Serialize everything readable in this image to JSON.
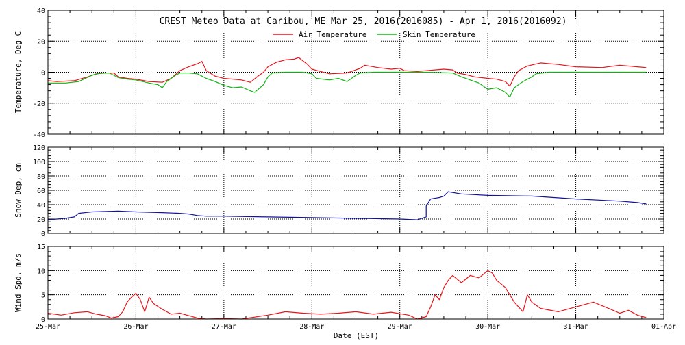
{
  "title": "CREST Meteo Data at Caribou, ME   Mar 25, 2016(2016085) - Apr  1, 2016(2016092)",
  "xlabel": "Date (EST)",
  "x_tick_labels": [
    "25-Mar",
    "26-Mar",
    "27-Mar",
    "28-Mar",
    "29-Mar",
    "30-Mar",
    "31-Mar",
    "01-Apr"
  ],
  "colors": {
    "air": "#e8141a",
    "skin": "#13b213",
    "snow": "#13139a",
    "wind": "#e8141a",
    "grid": "#000000"
  },
  "chart_data": [
    {
      "type": "line",
      "ylabel": "Temperature, Deg C",
      "ylim": [
        -40,
        40
      ],
      "y_tick_labels": [
        "-40",
        "-20",
        "0",
        "20",
        "40"
      ],
      "xlim": [
        0,
        7
      ],
      "grid": true,
      "legend": "top",
      "series": [
        {
          "name": "Air Temperature",
          "color": "#e8141a",
          "points": [
            [
              0,
              -5.5
            ],
            [
              0.1,
              -6
            ],
            [
              0.3,
              -5.5
            ],
            [
              0.45,
              -3
            ],
            [
              0.55,
              -1
            ],
            [
              0.65,
              -0.5
            ],
            [
              0.75,
              -0.5
            ],
            [
              0.8,
              -3
            ],
            [
              0.9,
              -4
            ],
            [
              1.0,
              -4.5
            ],
            [
              1.15,
              -6
            ],
            [
              1.3,
              -6.5
            ],
            [
              1.4,
              -4
            ],
            [
              1.5,
              1
            ],
            [
              1.6,
              3.5
            ],
            [
              1.7,
              5.5
            ],
            [
              1.75,
              7
            ],
            [
              1.8,
              1
            ],
            [
              1.9,
              -2.5
            ],
            [
              2.0,
              -4
            ],
            [
              2.2,
              -5
            ],
            [
              2.3,
              -6.5
            ],
            [
              2.4,
              -2
            ],
            [
              2.45,
              0
            ],
            [
              2.5,
              3.5
            ],
            [
              2.6,
              6.5
            ],
            [
              2.7,
              8
            ],
            [
              2.8,
              8.5
            ],
            [
              2.85,
              9.5
            ],
            [
              2.95,
              5
            ],
            [
              3.0,
              2
            ],
            [
              3.1,
              0.5
            ],
            [
              3.2,
              -1
            ],
            [
              3.4,
              -0.5
            ],
            [
              3.55,
              2.5
            ],
            [
              3.6,
              4.5
            ],
            [
              3.75,
              3
            ],
            [
              3.9,
              2
            ],
            [
              4.0,
              2.5
            ],
            [
              4.05,
              1
            ],
            [
              4.2,
              0.5
            ],
            [
              4.3,
              1
            ],
            [
              4.5,
              2
            ],
            [
              4.6,
              1.5
            ],
            [
              4.65,
              -0.5
            ],
            [
              4.75,
              -1.5
            ],
            [
              4.85,
              -3
            ],
            [
              5.0,
              -4
            ],
            [
              5.1,
              -4.5
            ],
            [
              5.2,
              -6
            ],
            [
              5.25,
              -9
            ],
            [
              5.3,
              -3
            ],
            [
              5.35,
              1
            ],
            [
              5.45,
              4
            ],
            [
              5.6,
              6
            ],
            [
              5.8,
              5
            ],
            [
              6.0,
              3.5
            ],
            [
              6.3,
              3
            ],
            [
              6.5,
              4.5
            ],
            [
              6.7,
              3.5
            ],
            [
              6.8,
              3
            ]
          ]
        },
        {
          "name": "Skin Temperature",
          "color": "#13b213",
          "points": [
            [
              0,
              -7
            ],
            [
              0.2,
              -7
            ],
            [
              0.35,
              -6
            ],
            [
              0.5,
              -2
            ],
            [
              0.6,
              -0.5
            ],
            [
              0.7,
              -0.5
            ],
            [
              0.8,
              -3.5
            ],
            [
              0.9,
              -4.5
            ],
            [
              1.0,
              -5
            ],
            [
              1.15,
              -7
            ],
            [
              1.25,
              -8
            ],
            [
              1.3,
              -10
            ],
            [
              1.35,
              -6
            ],
            [
              1.45,
              -2
            ],
            [
              1.5,
              -0.5
            ],
            [
              1.6,
              -0.5
            ],
            [
              1.7,
              -1
            ],
            [
              1.8,
              -4
            ],
            [
              1.9,
              -6
            ],
            [
              2.0,
              -8.5
            ],
            [
              2.1,
              -10
            ],
            [
              2.2,
              -9.5
            ],
            [
              2.3,
              -12
            ],
            [
              2.35,
              -13
            ],
            [
              2.45,
              -8
            ],
            [
              2.5,
              -3
            ],
            [
              2.55,
              -0.5
            ],
            [
              2.7,
              0
            ],
            [
              2.9,
              0
            ],
            [
              3.0,
              -1
            ],
            [
              3.05,
              -4
            ],
            [
              3.2,
              -5
            ],
            [
              3.3,
              -4
            ],
            [
              3.4,
              -6
            ],
            [
              3.5,
              -2
            ],
            [
              3.55,
              -0.5
            ],
            [
              3.7,
              0
            ],
            [
              4.0,
              0
            ],
            [
              4.3,
              0
            ],
            [
              4.6,
              -0.5
            ],
            [
              4.7,
              -3
            ],
            [
              4.8,
              -5
            ],
            [
              4.9,
              -7
            ],
            [
              4.95,
              -9
            ],
            [
              5.0,
              -11
            ],
            [
              5.1,
              -10
            ],
            [
              5.2,
              -13
            ],
            [
              5.25,
              -16
            ],
            [
              5.3,
              -10
            ],
            [
              5.4,
              -6
            ],
            [
              5.5,
              -3
            ],
            [
              5.55,
              -1
            ],
            [
              5.7,
              0
            ],
            [
              6.0,
              0
            ],
            [
              6.5,
              0
            ],
            [
              6.8,
              0
            ]
          ]
        }
      ]
    },
    {
      "type": "line",
      "ylabel": "Snow Dep, cm",
      "ylim": [
        0,
        120
      ],
      "y_tick_labels": [
        "0",
        "20",
        "40",
        "60",
        "80",
        "100",
        "120"
      ],
      "xlim": [
        0,
        7
      ],
      "grid": true,
      "series": [
        {
          "color": "#13139a",
          "points": [
            [
              0,
              19
            ],
            [
              0.2,
              21
            ],
            [
              0.3,
              23
            ],
            [
              0.35,
              28
            ],
            [
              0.5,
              30
            ],
            [
              0.8,
              31
            ],
            [
              1.0,
              30
            ],
            [
              1.3,
              29
            ],
            [
              1.5,
              28
            ],
            [
              1.6,
              27
            ],
            [
              1.7,
              25
            ],
            [
              1.8,
              24
            ],
            [
              2.0,
              24
            ],
            [
              2.5,
              23
            ],
            [
              3.0,
              22
            ],
            [
              3.5,
              21
            ],
            [
              4.0,
              20
            ],
            [
              4.2,
              19
            ],
            [
              4.25,
              21
            ],
            [
              4.3,
              23
            ],
            [
              4.3,
              38
            ],
            [
              4.35,
              48
            ],
            [
              4.45,
              50
            ],
            [
              4.5,
              52
            ],
            [
              4.55,
              58
            ],
            [
              4.7,
              55
            ],
            [
              5.0,
              53
            ],
            [
              5.5,
              52
            ],
            [
              6.0,
              48
            ],
            [
              6.5,
              45
            ],
            [
              6.7,
              43
            ],
            [
              6.8,
              41
            ]
          ]
        }
      ]
    },
    {
      "type": "line",
      "ylabel": "Wind Spd, m/s",
      "ylim": [
        0,
        15
      ],
      "y_tick_labels": [
        "0",
        "5",
        "10",
        "15"
      ],
      "xlim": [
        0,
        7
      ],
      "grid": true,
      "series": [
        {
          "color": "#e8141a",
          "points": [
            [
              0,
              1.2
            ],
            [
              0.15,
              0.8
            ],
            [
              0.3,
              1.3
            ],
            [
              0.45,
              1.5
            ],
            [
              0.55,
              1.0
            ],
            [
              0.65,
              0.7
            ],
            [
              0.72,
              0.2
            ],
            [
              0.8,
              0.5
            ],
            [
              0.85,
              1.5
            ],
            [
              0.9,
              3.5
            ],
            [
              0.95,
              4.5
            ],
            [
              1.0,
              5.3
            ],
            [
              1.05,
              4.0
            ],
            [
              1.1,
              1.5
            ],
            [
              1.15,
              4.5
            ],
            [
              1.2,
              3.2
            ],
            [
              1.3,
              2.0
            ],
            [
              1.4,
              1.0
            ],
            [
              1.5,
              1.2
            ],
            [
              1.6,
              0.7
            ],
            [
              1.7,
              0.2
            ],
            [
              1.8,
              0.0
            ],
            [
              2.0,
              0.1
            ],
            [
              2.2,
              0.0
            ],
            [
              2.35,
              0.4
            ],
            [
              2.5,
              0.8
            ],
            [
              2.7,
              1.5
            ],
            [
              2.9,
              1.2
            ],
            [
              3.1,
              1.0
            ],
            [
              3.3,
              1.2
            ],
            [
              3.5,
              1.5
            ],
            [
              3.7,
              1.0
            ],
            [
              3.9,
              1.4
            ],
            [
              4.1,
              0.8
            ],
            [
              4.2,
              0.0
            ],
            [
              4.3,
              0.5
            ],
            [
              4.35,
              2.5
            ],
            [
              4.4,
              5.0
            ],
            [
              4.45,
              4.0
            ],
            [
              4.5,
              6.5
            ],
            [
              4.55,
              8.0
            ],
            [
              4.6,
              9.0
            ],
            [
              4.7,
              7.5
            ],
            [
              4.8,
              9.0
            ],
            [
              4.9,
              8.5
            ],
            [
              5.0,
              10.0
            ],
            [
              5.05,
              9.5
            ],
            [
              5.1,
              8.0
            ],
            [
              5.2,
              6.5
            ],
            [
              5.3,
              3.5
            ],
            [
              5.4,
              1.5
            ],
            [
              5.45,
              5.0
            ],
            [
              5.5,
              3.5
            ],
            [
              5.6,
              2.2
            ],
            [
              5.8,
              1.5
            ],
            [
              6.0,
              2.5
            ],
            [
              6.2,
              3.5
            ],
            [
              6.4,
              2.0
            ],
            [
              6.5,
              1.2
            ],
            [
              6.6,
              1.8
            ],
            [
              6.7,
              0.8
            ],
            [
              6.8,
              0.3
            ]
          ]
        }
      ]
    }
  ]
}
